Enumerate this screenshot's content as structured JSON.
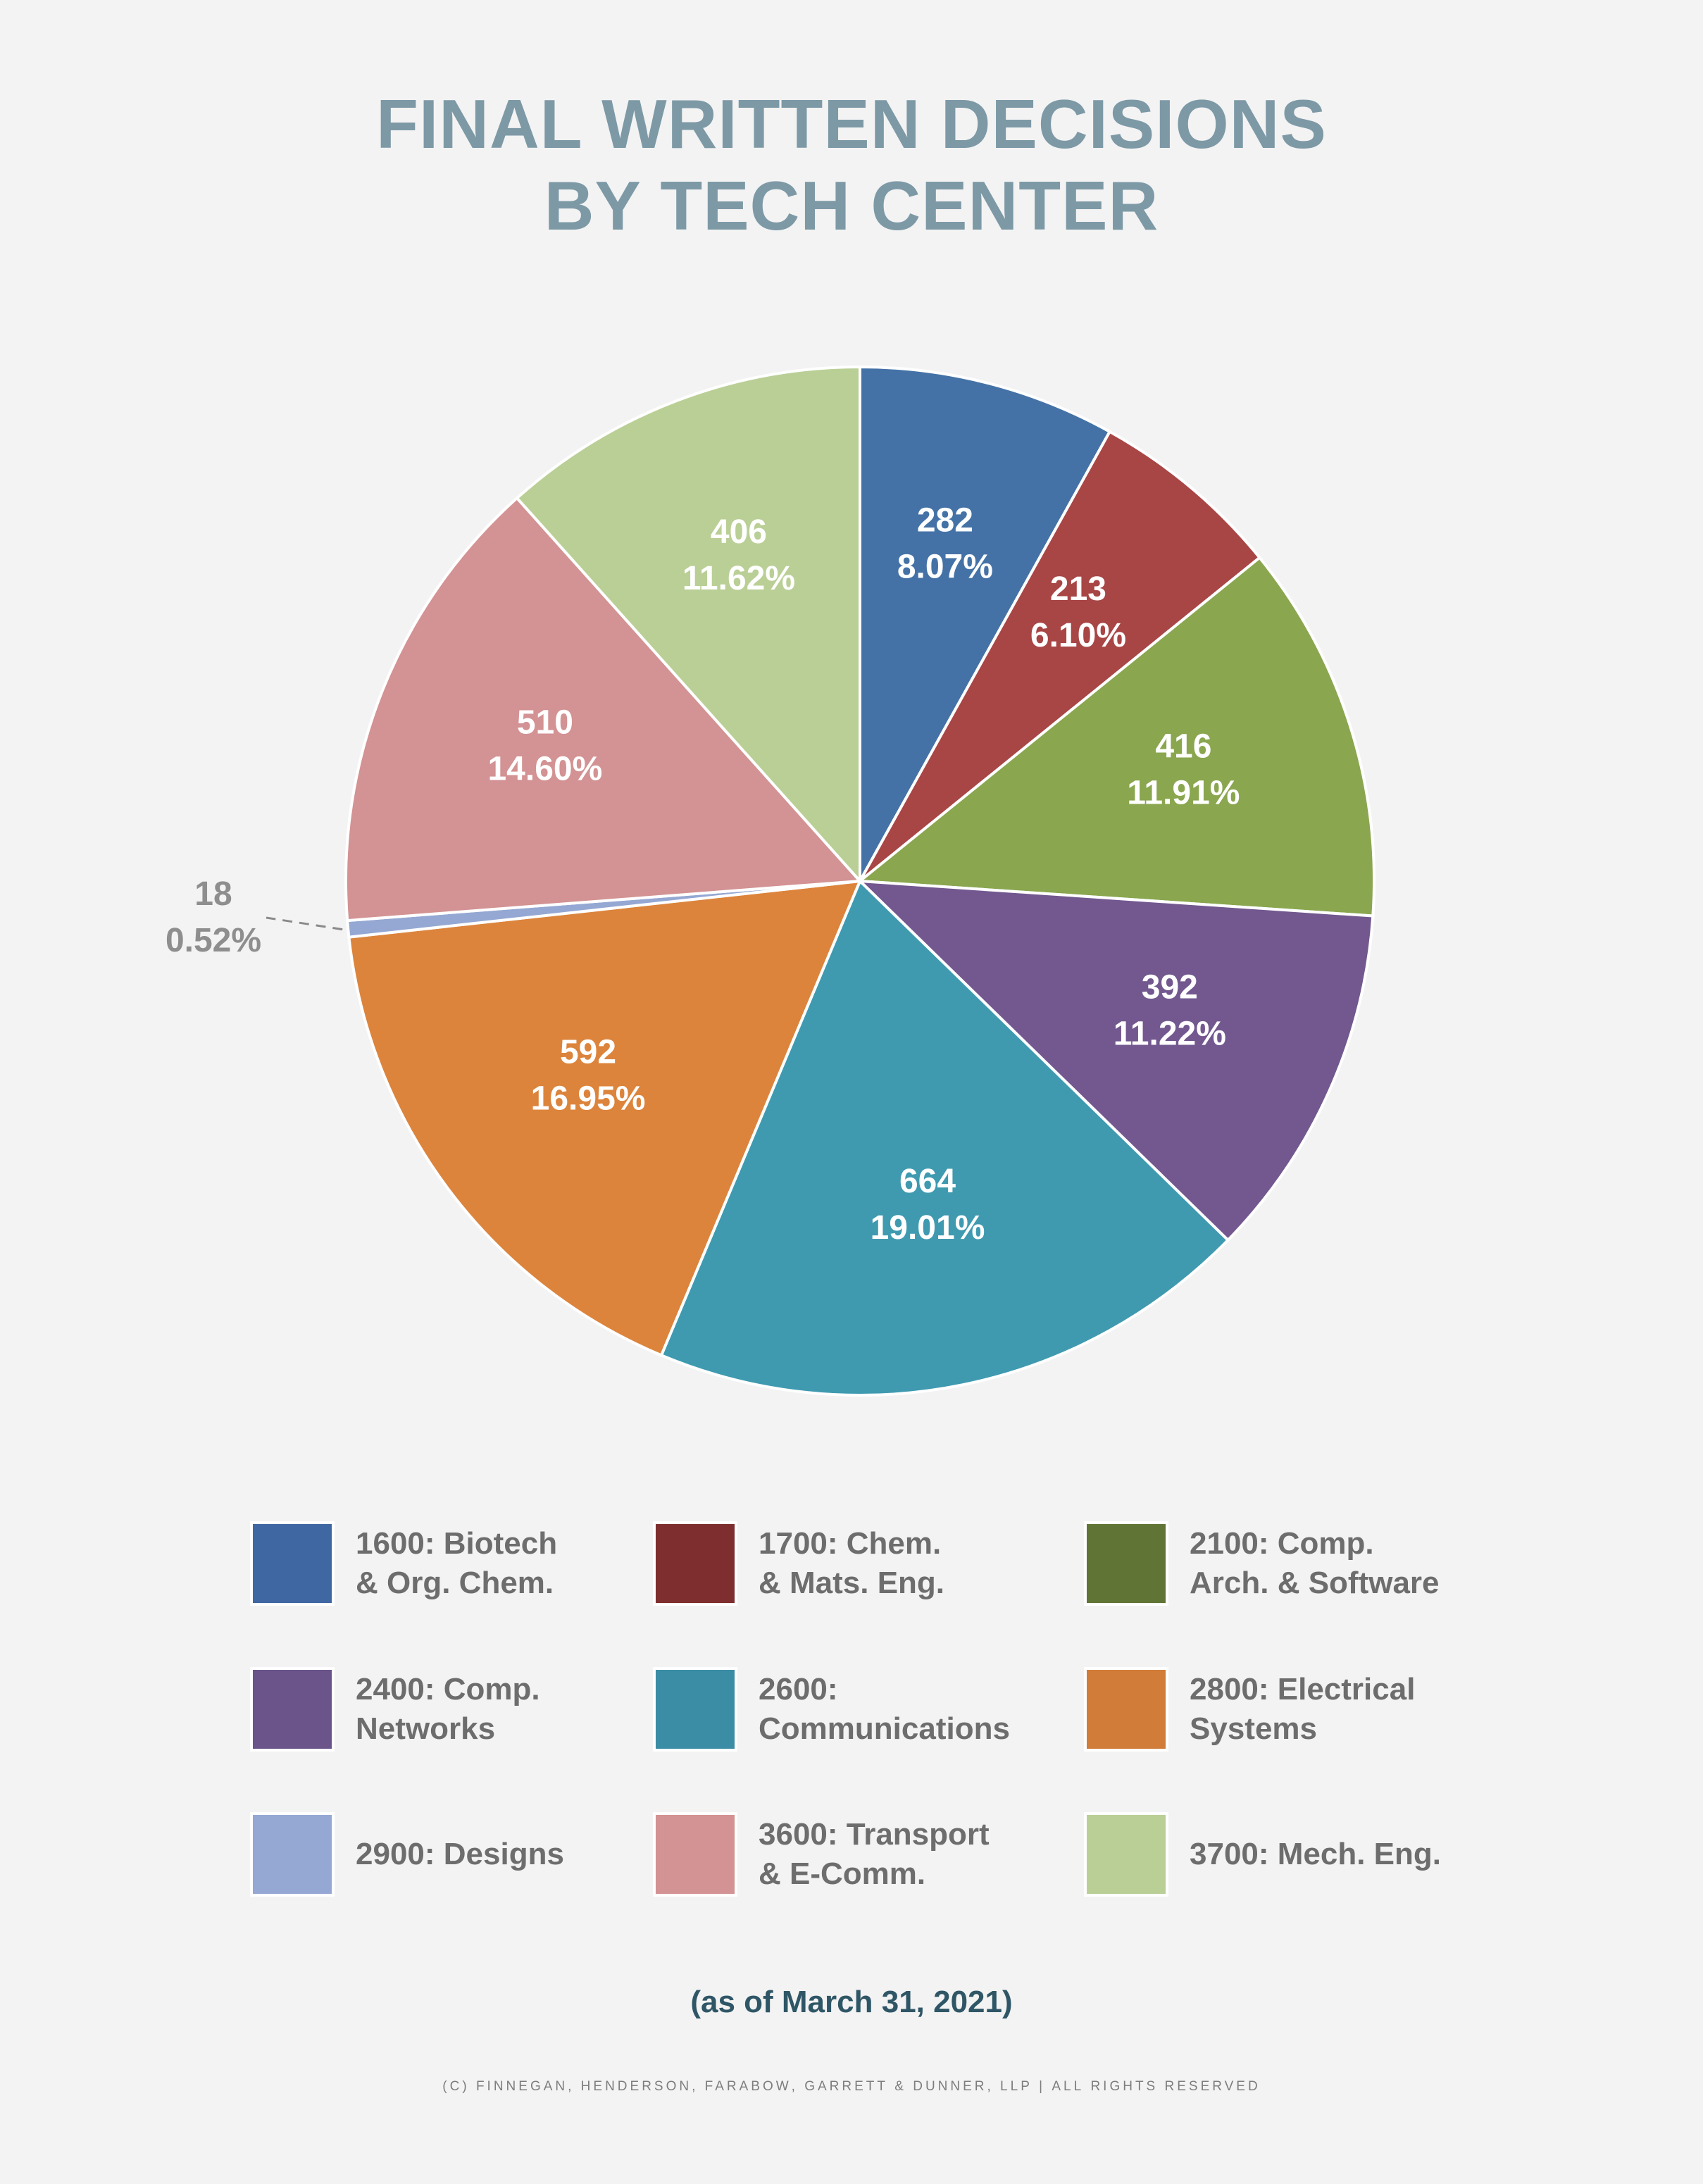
{
  "title_lines": [
    "FINAL WRITTEN DECISIONS",
    "BY TECH CENTER"
  ],
  "chart_data": {
    "type": "pie",
    "title": "FINAL WRITTEN DECISIONS BY TECH CENTER",
    "slices": [
      {
        "label": "1600: Biotech & Org. Chem.",
        "value": 282,
        "percent": "8.07%",
        "color": "#4472a6"
      },
      {
        "label": "1700: Chem. & Mats. Eng.",
        "value": 213,
        "percent": "6.10%",
        "color": "#a84545"
      },
      {
        "label": "2100: Comp. Arch. & Software",
        "value": 416,
        "percent": "11.91%",
        "color": "#8aa64f"
      },
      {
        "label": "2400: Comp. Networks",
        "value": 392,
        "percent": "11.22%",
        "color": "#72588f"
      },
      {
        "label": "2600: Communications",
        "value": 664,
        "percent": "19.01%",
        "color": "#3f9ab0"
      },
      {
        "label": "2800: Electrical Systems",
        "value": 592,
        "percent": "16.95%",
        "color": "#dc843c"
      },
      {
        "label": "2900: Designs",
        "value": 18,
        "percent": "0.52%",
        "color": "#95a8d3"
      },
      {
        "label": "3600: Transport & E-Comm.",
        "value": 510,
        "percent": "14.60%",
        "color": "#d39293"
      },
      {
        "label": "3700: Mech. Eng.",
        "value": 406,
        "percent": "11.62%",
        "color": "#bacf96"
      }
    ]
  },
  "legend": [
    {
      "line1": "1600: Biotech",
      "line2": "& Org. Chem.",
      "color": "#3f67a1"
    },
    {
      "line1": "1700: Chem.",
      "line2": "& Mats. Eng.",
      "color": "#7e2e2f"
    },
    {
      "line1": "2100: Comp.",
      "line2": "Arch. & Software",
      "color": "#607535"
    },
    {
      "line1": "2400: Comp.",
      "line2": "Networks",
      "color": "#6a5489"
    },
    {
      "line1": "2600:",
      "line2": "Communications",
      "color": "#3b8da5"
    },
    {
      "line1": "2800: Electrical",
      "line2": "Systems",
      "color": "#d17c39"
    },
    {
      "line1": "2900: Designs",
      "line2": "",
      "color": "#95a8d3"
    },
    {
      "line1": "3600: Transport",
      "line2": "& E-Comm.",
      "color": "#d39293"
    },
    {
      "line1": "3700: Mech. Eng.",
      "line2": "",
      "color": "#bacf96"
    }
  ],
  "as_of": "(as of March 31, 2021)",
  "copyright": "(c) finnegan, henderson, farabow, garrett & dunner, llp | all rights reserved"
}
